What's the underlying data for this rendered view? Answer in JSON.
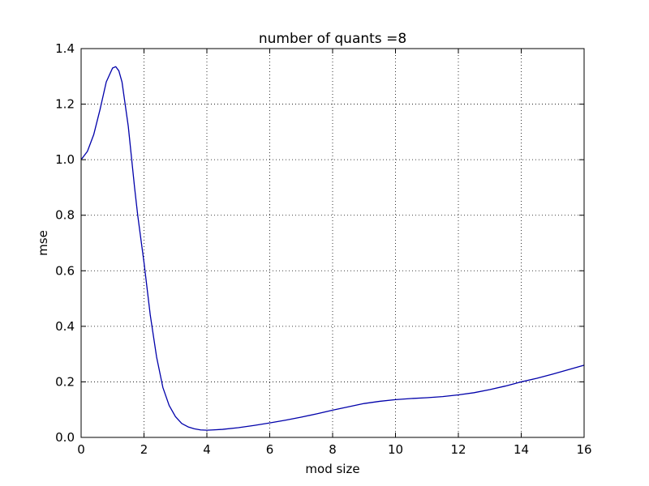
{
  "chart_data": {
    "type": "line",
    "title": "number of quants =8",
    "xlabel": "mod size",
    "ylabel": "mse",
    "xlim": [
      0,
      16
    ],
    "ylim": [
      0,
      1.4
    ],
    "xticks": [
      "0",
      "2",
      "4",
      "6",
      "8",
      "10",
      "12",
      "14",
      "16"
    ],
    "yticks": [
      "0.0",
      "0.2",
      "0.4",
      "0.6",
      "0.8",
      "1.0",
      "1.2",
      "1.4"
    ],
    "grid": true,
    "line_color": "#0000aa",
    "series": [
      {
        "x": [
          0,
          0.2,
          0.4,
          0.6,
          0.8,
          1.0,
          1.1,
          1.2,
          1.3,
          1.5,
          1.7,
          1.8,
          2.0,
          2.2,
          2.4,
          2.6,
          2.8,
          3.0,
          3.2,
          3.4,
          3.6,
          3.8,
          4.0,
          4.2,
          4.5,
          5.0,
          5.5,
          6.0,
          6.5,
          7.0,
          7.5,
          8.0,
          8.5,
          9.0,
          9.5,
          10.0,
          10.5,
          11.0,
          11.5,
          12.0,
          12.5,
          13.0,
          13.5,
          14.0,
          14.5,
          15.0,
          15.5,
          16.0
        ],
        "y": [
          1.0,
          1.03,
          1.09,
          1.18,
          1.28,
          1.33,
          1.335,
          1.32,
          1.28,
          1.12,
          0.9,
          0.8,
          0.63,
          0.44,
          0.29,
          0.18,
          0.115,
          0.075,
          0.05,
          0.038,
          0.031,
          0.027,
          0.026,
          0.027,
          0.029,
          0.035,
          0.043,
          0.052,
          0.062,
          0.073,
          0.085,
          0.098,
          0.11,
          0.122,
          0.13,
          0.136,
          0.14,
          0.143,
          0.147,
          0.153,
          0.161,
          0.172,
          0.185,
          0.2,
          0.213,
          0.228,
          0.244,
          0.26
        ]
      }
    ]
  }
}
